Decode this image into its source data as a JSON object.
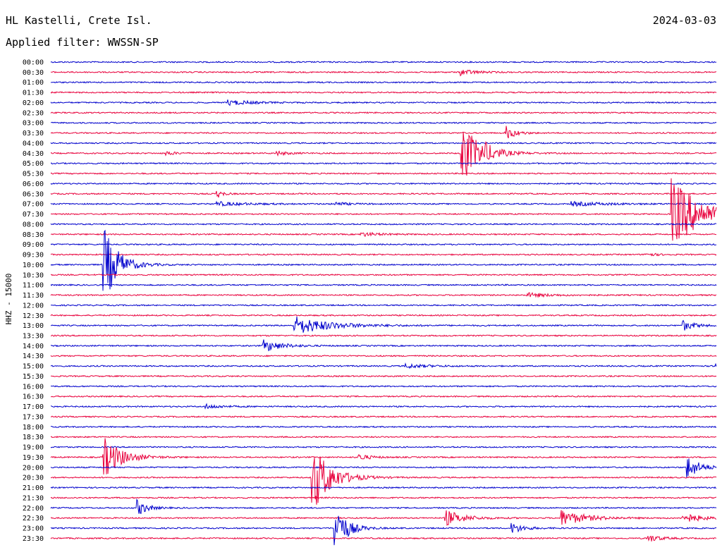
{
  "header": {
    "station": "HL Kastelli, Crete Isl.",
    "filter": "Applied filter: WWSSN-SP",
    "date": "2024-03-03"
  },
  "chart_data": {
    "type": "line",
    "title": "HL Kastelli, Crete Isl.",
    "subtitle": "Applied filter: WWSSN-SP",
    "ylabel": "HHZ - 15000",
    "colors": [
      "#0000cc",
      "#e8003c"
    ],
    "row_labels": [
      "00:00",
      "00:30",
      "01:00",
      "01:30",
      "02:00",
      "02:30",
      "03:00",
      "03:30",
      "04:00",
      "04:30",
      "05:00",
      "05:30",
      "06:00",
      "06:30",
      "07:00",
      "07:30",
      "08:00",
      "08:30",
      "09:00",
      "09:30",
      "10:00",
      "10:30",
      "11:00",
      "11:30",
      "12:00",
      "12:30",
      "13:00",
      "13:30",
      "14:00",
      "14:30",
      "15:00",
      "15:30",
      "16:00",
      "16:30",
      "17:00",
      "17:30",
      "18:00",
      "18:30",
      "19:00",
      "19:30",
      "20:00",
      "20:30",
      "21:00",
      "21:30",
      "22:00",
      "22:30",
      "23:00",
      "23:30"
    ],
    "trace_minutes": 30,
    "events": [
      {
        "row": 1,
        "minute": 18.5,
        "amp": 0.3,
        "dur": 1.2
      },
      {
        "row": 4,
        "minute": 8.0,
        "amp": 0.25,
        "dur": 2.0
      },
      {
        "row": 7,
        "minute": 20.5,
        "amp": 0.7,
        "dur": 0.8
      },
      {
        "row": 9,
        "minute": 18.5,
        "amp": 3.2,
        "dur": 1.5
      },
      {
        "row": 9,
        "minute": 19.5,
        "amp": 0.4,
        "dur": 0.8
      },
      {
        "row": 9,
        "minute": 10.2,
        "amp": 0.2,
        "dur": 1.0
      },
      {
        "row": 9,
        "minute": 5.2,
        "amp": 0.2,
        "dur": 0.8
      },
      {
        "row": 13,
        "minute": 7.5,
        "amp": 0.4,
        "dur": 0.5
      },
      {
        "row": 14,
        "minute": 7.5,
        "amp": 0.2,
        "dur": 2.5
      },
      {
        "row": 14,
        "minute": 12.8,
        "amp": 0.2,
        "dur": 1.0
      },
      {
        "row": 14,
        "minute": 23.5,
        "amp": 0.2,
        "dur": 3.0
      },
      {
        "row": 15,
        "minute": 28.0,
        "amp": 3.5,
        "dur": 2.5
      },
      {
        "row": 17,
        "minute": 14.0,
        "amp": 0.2,
        "dur": 1.5
      },
      {
        "row": 19,
        "minute": 26.8,
        "amp": 0.2,
        "dur": 0.8
      },
      {
        "row": 20,
        "minute": 2.4,
        "amp": 3.8,
        "dur": 1.2
      },
      {
        "row": 23,
        "minute": 21.5,
        "amp": 0.2,
        "dur": 2.0
      },
      {
        "row": 26,
        "minute": 11.0,
        "amp": 0.9,
        "dur": 3.0
      },
      {
        "row": 26,
        "minute": 28.5,
        "amp": 0.5,
        "dur": 1.0
      },
      {
        "row": 28,
        "minute": 9.6,
        "amp": 0.6,
        "dur": 1.5
      },
      {
        "row": 30,
        "minute": 16.0,
        "amp": 0.2,
        "dur": 2.0
      },
      {
        "row": 30,
        "minute": 30.0,
        "amp": 1.0,
        "dur": 2.0
      },
      {
        "row": 34,
        "minute": 7.0,
        "amp": 0.2,
        "dur": 1.5
      },
      {
        "row": 39,
        "minute": 2.4,
        "amp": 2.0,
        "dur": 1.5
      },
      {
        "row": 39,
        "minute": 13.9,
        "amp": 0.3,
        "dur": 1.0
      },
      {
        "row": 40,
        "minute": 28.7,
        "amp": 1.2,
        "dur": 1.0
      },
      {
        "row": 41,
        "minute": 11.8,
        "amp": 3.5,
        "dur": 1.5
      },
      {
        "row": 44,
        "minute": 3.9,
        "amp": 0.8,
        "dur": 0.8
      },
      {
        "row": 45,
        "minute": 17.8,
        "amp": 0.8,
        "dur": 1.5
      },
      {
        "row": 45,
        "minute": 23.0,
        "amp": 0.8,
        "dur": 2.0
      },
      {
        "row": 45,
        "minute": 28.5,
        "amp": 0.5,
        "dur": 1.5
      },
      {
        "row": 46,
        "minute": 12.8,
        "amp": 2.5,
        "dur": 1.0
      },
      {
        "row": 46,
        "minute": 20.8,
        "amp": 0.5,
        "dur": 1.0
      },
      {
        "row": 47,
        "minute": 26.9,
        "amp": 0.4,
        "dur": 1.0
      }
    ]
  }
}
